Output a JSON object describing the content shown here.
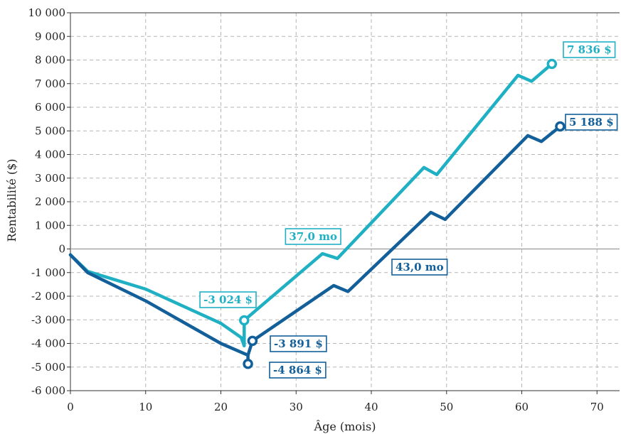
{
  "chart_data": {
    "type": "line",
    "xlabel": "Âge (mois)",
    "ylabel": "Rentabilité ($)",
    "xlim": [
      0,
      73
    ],
    "ylim": [
      -6000,
      10000
    ],
    "x_ticks": [
      "0",
      "10",
      "20",
      "30",
      "40",
      "50",
      "60",
      "70"
    ],
    "y_ticks": [
      "-6 000",
      "-5 000",
      "-4 000",
      "-3 000",
      "-2 000",
      "-1 000",
      "0",
      "1 000",
      "2 000",
      "3 000",
      "4 000",
      "5 000",
      "6 000",
      "7 000",
      "8 000",
      "9 000",
      "10 000"
    ],
    "grid": true,
    "series": [
      {
        "color": "#1fb0c4",
        "points": [
          [
            0,
            -250
          ],
          [
            2.3,
            -950
          ],
          [
            10,
            -1700
          ],
          [
            20,
            -3150
          ],
          [
            22.7,
            -3750
          ],
          [
            23.1,
            -4100
          ],
          [
            23.1,
            -3024
          ],
          [
            33.5,
            -200
          ],
          [
            35.5,
            -400
          ],
          [
            47,
            3450
          ],
          [
            48.7,
            3150
          ],
          [
            59.5,
            7350
          ],
          [
            61.3,
            7100
          ],
          [
            64,
            7836
          ]
        ]
      },
      {
        "color": "#125f9a",
        "points": [
          [
            0,
            -250
          ],
          [
            2.3,
            -1000
          ],
          [
            10,
            -2200
          ],
          [
            20,
            -4000
          ],
          [
            23.6,
            -4500
          ],
          [
            23.6,
            -4864
          ],
          [
            23.6,
            -4500
          ],
          [
            24.2,
            -3891
          ],
          [
            35,
            -1550
          ],
          [
            36.9,
            -1800
          ],
          [
            47.9,
            1550
          ],
          [
            49.8,
            1250
          ],
          [
            60.8,
            4800
          ],
          [
            62.6,
            4550
          ],
          [
            65.1,
            5188
          ]
        ]
      }
    ],
    "annotations": [
      {
        "text": "7 836 $",
        "x": 64,
        "y": 7836,
        "color": "#1fb0c4",
        "style": "outline"
      },
      {
        "text": "5 188 $",
        "x": 65.1,
        "y": 5188,
        "color": "#125f9a",
        "style": "outline"
      },
      {
        "text": "-3 024 $",
        "x": 23.1,
        "y": -3024,
        "color": "#1fb0c4",
        "style": "outline"
      },
      {
        "text": "-3 891 $",
        "x": 24.2,
        "y": -3891,
        "color": "#125f9a",
        "style": "outline"
      },
      {
        "text": "-4 864 $",
        "x": 23.6,
        "y": -4864,
        "color": "#125f9a",
        "style": "outline"
      },
      {
        "text": "37,0 mo",
        "color": "#1fb0c4",
        "style": "outline"
      },
      {
        "text": "43,0 mo",
        "color": "#125f9a",
        "style": "outline"
      }
    ],
    "zero_line": true
  }
}
